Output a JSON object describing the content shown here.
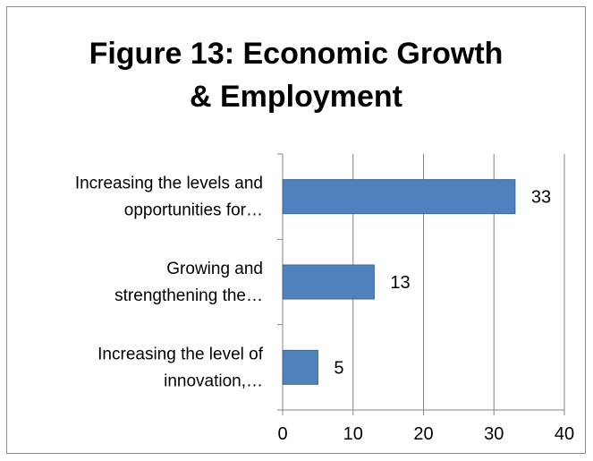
{
  "chart_data": {
    "type": "bar",
    "orientation": "horizontal",
    "title_lines": [
      "Figure 13: Economic Growth",
      "& Employment"
    ],
    "categories": [
      [
        "Increasing the levels and",
        "opportunities for…"
      ],
      [
        "Growing and",
        "strengthening the…"
      ],
      [
        "Increasing the level of",
        "innovation,…"
      ]
    ],
    "values": [
      33,
      13,
      5
    ],
    "xlim": [
      0,
      40
    ],
    "xticks": [
      0,
      10,
      20,
      30,
      40
    ],
    "xlabel": "",
    "ylabel": "",
    "grid": "vertical",
    "legend": "none",
    "bar_color": "#4f81bd",
    "bar_border_color": "#3c6696",
    "grid_color": "#868686"
  }
}
